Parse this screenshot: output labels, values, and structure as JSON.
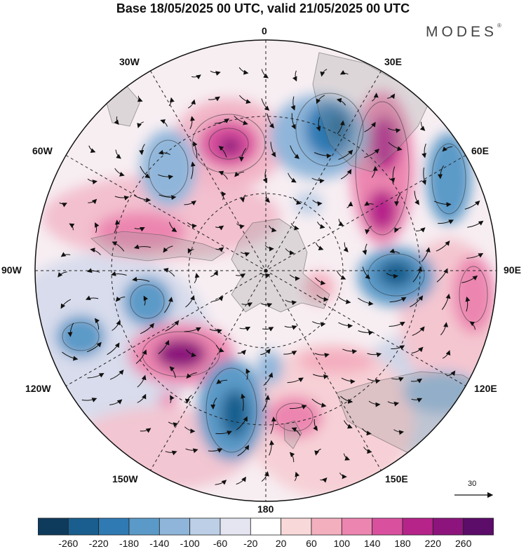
{
  "header": {
    "title": "Base 18/05/2025 00 UTC, valid 21/05/2025 00 UTC",
    "brand": "MODES",
    "brand_mark": "®"
  },
  "map": {
    "projection": "south-polar-stereographic",
    "longitude_labels": {
      "top": "0",
      "top_right": "30E",
      "right_upper": "60E",
      "right": "90E",
      "right_lower": "120E",
      "bottom_right": "150E",
      "bottom": "180",
      "bottom_left": "150W",
      "left_lower": "120W",
      "left": "90W",
      "left_upper": "60W",
      "top_left": "30W"
    },
    "reference_vector": {
      "value": "30"
    }
  },
  "colorbar": {
    "colors": [
      "#0e3a5c",
      "#195e8e",
      "#2f7ab3",
      "#5b9ac8",
      "#8fb6da",
      "#bccfe6",
      "#e4e5f1",
      "#ffffff",
      "#f9d8da",
      "#f4afbf",
      "#ec86b0",
      "#d9519e",
      "#b6248a",
      "#8c147c",
      "#5c0c69"
    ],
    "ticks": [
      "-260",
      "-220",
      "-180",
      "-140",
      "-100",
      "-60",
      "-20",
      "20",
      "60",
      "100",
      "140",
      "180",
      "220",
      "260"
    ]
  }
}
